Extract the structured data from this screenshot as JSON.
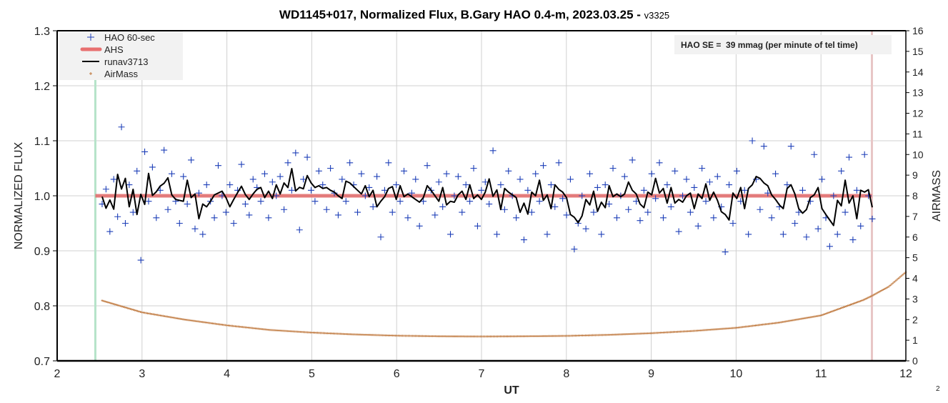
{
  "chart_data": {
    "type": "scatter",
    "title": "WD1145+017, Normalized Flux, B.Gary HAO 0.4-m, 2023.03.25 - ",
    "version": "v3325",
    "xlabel": "UT",
    "ylabel": "NORMALIZED FLUX",
    "y2label": "AIRMASS",
    "xlim": [
      2,
      12
    ],
    "ylim": [
      0.7,
      1.3
    ],
    "y2lim": [
      0,
      16
    ],
    "xticks": [
      "2",
      "3",
      "4",
      "5",
      "6",
      "7",
      "8",
      "9",
      "10",
      "11",
      "12"
    ],
    "yticks": [
      "0.7",
      "0.8",
      "0.9",
      "1.0",
      "1.1",
      "1.2",
      "1.3"
    ],
    "y2ticks": [
      "0",
      "1",
      "2",
      "3",
      "4",
      "5",
      "6",
      "7",
      "8",
      "9",
      "10",
      "11",
      "12",
      "13",
      "14",
      "15",
      "16"
    ],
    "grid": true,
    "legend": {
      "placement": "top-left",
      "entries": [
        "HAO 60-sec",
        "AHS",
        "runav3713",
        "AirMass"
      ]
    },
    "annotation": "HAO SE =  39 mmag (per minute of tel time)",
    "vertical_markers": [
      {
        "x": 2.45,
        "color": "#b6e3c9"
      },
      {
        "x": 11.6,
        "color": "#e8c6c6"
      }
    ],
    "colors": {
      "flux": "#1d3fb8",
      "ahs": "#e06666",
      "runavg": "#000000",
      "airmass": "#c07a40"
    },
    "series": [
      {
        "name": "HAO 60-sec",
        "x_start": 2.53,
        "x_step": 0.0456,
        "values": [
          0.985,
          1.012,
          0.935,
          1.03,
          0.962,
          1.125,
          0.95,
          1.02,
          0.97,
          1.045,
          0.883,
          1.08,
          0.99,
          1.052,
          0.96,
          1.01,
          1.083,
          0.975,
          1.04,
          0.99,
          0.95,
          1.035,
          0.985,
          1.065,
          0.94,
          1.005,
          0.93,
          1.02,
          0.99,
          0.96,
          1.055,
          1.0,
          0.97,
          1.02,
          0.95,
          1.01,
          1.057,
          0.985,
          0.965,
          1.03,
          1.015,
          0.99,
          1.04,
          0.96,
          1.025,
          1.0,
          1.035,
          0.975,
          1.06,
          1.01,
          1.078,
          0.938,
          1.03,
          1.07,
          1.01,
          0.99,
          1.045,
          1.02,
          0.975,
          1.05,
          1.005,
          0.965,
          1.03,
          0.99,
          1.06,
          1.02,
          0.97,
          1.04,
          1.0,
          1.015,
          0.98,
          1.035,
          0.925,
          1.01,
          1.06,
          0.97,
          1.02,
          0.99,
          1.045,
          0.96,
          1.005,
          1.03,
          0.945,
          0.99,
          1.055,
          1.01,
          0.965,
          1.025,
          0.98,
          1.04,
          0.93,
          1.0,
          1.035,
          0.97,
          1.02,
          0.99,
          1.05,
          0.945,
          1.01,
          1.025,
          0.985,
          1.082,
          0.93,
          1.02,
          0.975,
          1.045,
          1.0,
          0.96,
          1.03,
          0.92,
          1.01,
          0.97,
          1.04,
          0.99,
          1.055,
          0.93,
          1.02,
          0.98,
          1.06,
          0.995,
          0.965,
          1.03,
          0.903,
          0.95,
          1.0,
          0.94,
          1.04,
          0.97,
          1.015,
          0.93,
          1.02,
          0.985,
          1.05,
          0.96,
          1.0,
          1.035,
          0.975,
          1.065,
          0.99,
          0.955,
          1.01,
          0.97,
          1.04,
          0.995,
          1.06,
          0.96,
          1.02,
          0.98,
          1.045,
          0.935,
          1.0,
          1.03,
          0.97,
          1.015,
          0.945,
          1.05,
          0.99,
          1.025,
          0.96,
          1.035,
          0.98,
          0.898,
          1.02,
          0.95,
          1.045,
          0.99,
          1.01,
          0.93,
          1.1,
          1.03,
          0.975,
          1.09,
          1.005,
          0.96,
          1.04,
          0.98,
          0.93,
          1.02,
          1.09,
          0.95,
          0.97,
          1.01,
          0.925,
          0.99,
          1.075,
          0.94,
          1.03,
          0.96,
          0.908,
          1.0,
          0.93,
          1.045,
          0.97,
          1.07,
          0.92,
          1.01,
          0.945,
          1.075,
          1.0,
          0.958
        ]
      },
      {
        "name": "AHS",
        "x": [
          2.45,
          11.6
        ],
        "y": [
          1.0,
          1.0
        ]
      },
      {
        "name": "runav3713",
        "derived_from": "HAO 60-sec",
        "window": 3
      },
      {
        "name": "AirMass",
        "axis": "right",
        "x": [
          2.53,
          3,
          3.5,
          4,
          4.5,
          5,
          5.5,
          6,
          6.5,
          7,
          7.5,
          8,
          8.5,
          9,
          9.5,
          10,
          10.5,
          11,
          11.5,
          11.6,
          11.8,
          12
        ],
        "y": [
          2.92,
          2.35,
          2.0,
          1.72,
          1.5,
          1.37,
          1.28,
          1.22,
          1.19,
          1.18,
          1.19,
          1.21,
          1.26,
          1.34,
          1.45,
          1.6,
          1.85,
          2.2,
          2.95,
          3.15,
          3.6,
          4.3
        ]
      }
    ]
  },
  "page_number": "2"
}
